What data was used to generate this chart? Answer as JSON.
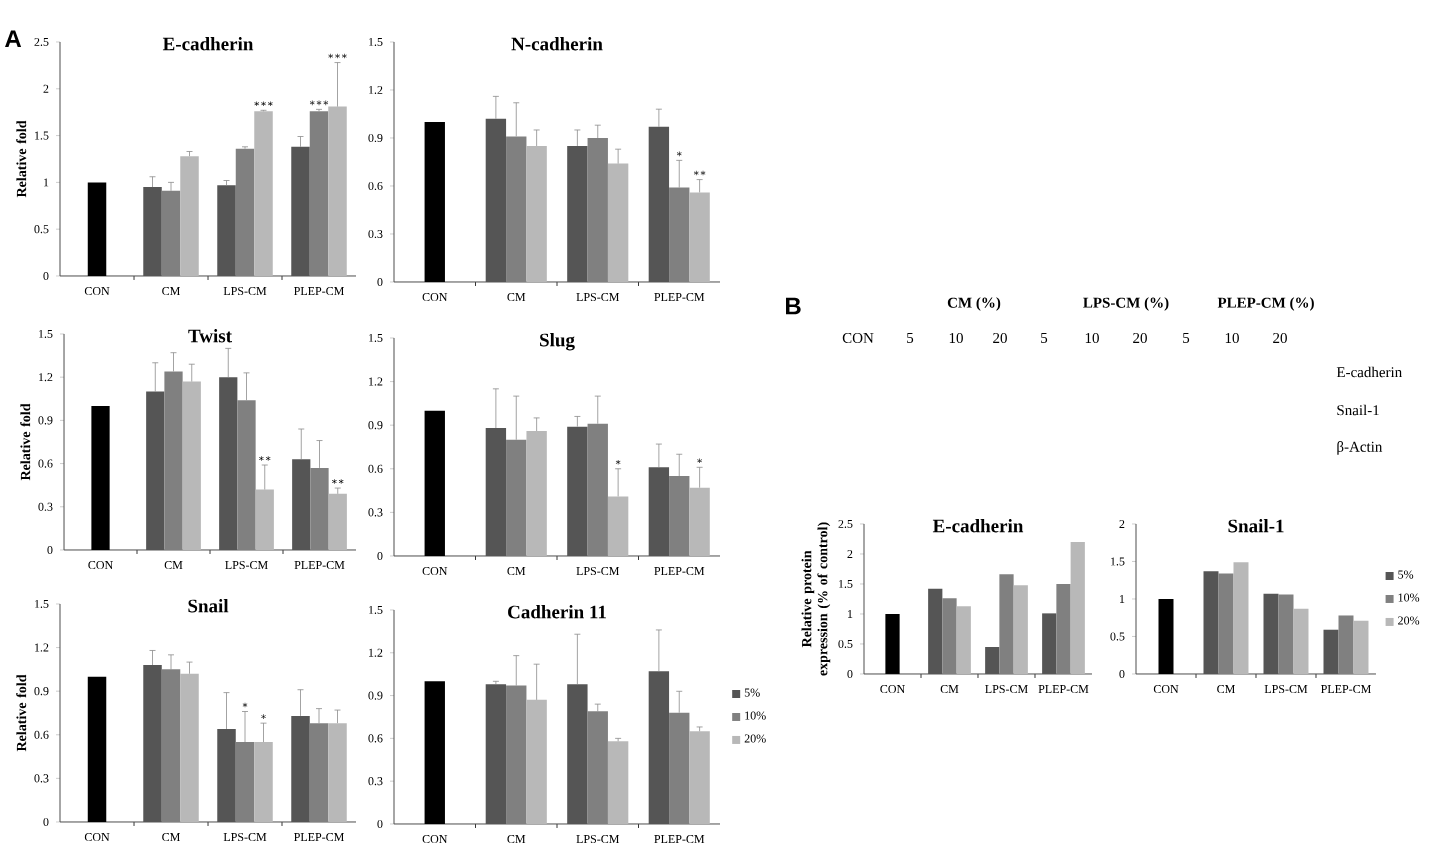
{
  "chart_data": [
    {
      "type": "bar",
      "title": "E-cadherin",
      "ylabel": "Relative fold",
      "categories": [
        "CON",
        "CM",
        "LPS-CM",
        "PLEP-CM"
      ],
      "ylim": [
        0,
        2.5
      ],
      "yticks": [
        0,
        0.5,
        1,
        1.5,
        2,
        2.5
      ],
      "series": [
        {
          "color": "#000000",
          "values": [
            1.0,
            null,
            null,
            null
          ]
        },
        {
          "color": "#555555",
          "values": [
            null,
            0.95,
            0.97,
            1.38
          ],
          "errors": [
            null,
            0.11,
            0.05,
            0.11
          ]
        },
        {
          "color": "#808080",
          "values": [
            null,
            0.91,
            1.36,
            1.76
          ],
          "errors": [
            null,
            0.09,
            0.02,
            0.02
          ]
        },
        {
          "color": "#b8b8b8",
          "values": [
            null,
            1.28,
            1.76,
            1.81
          ],
          "errors": [
            null,
            0.05,
            0.01,
            0.47
          ]
        }
      ],
      "annotations": [
        "A",
        {
          "text": "∗∗∗",
          "x": "LPS-CM",
          "y": 1.77
        },
        {
          "text": "∗∗∗",
          "x": "PLEP-CM",
          "y": 1.78
        },
        "∗∗∗"
      ]
    },
    {
      "type": "bar",
      "title": "N-cadherin",
      "categories": [
        "CON",
        "CM",
        "LPS-CM",
        "PLEP-CM"
      ],
      "ylim": [
        0,
        1.5
      ],
      "yticks": [
        0,
        0.3,
        0.6,
        0.9,
        1.2,
        1.5
      ],
      "series": [
        {
          "color": "#000000",
          "values": [
            1.0,
            null,
            null,
            null
          ]
        },
        {
          "color": "#555555",
          "values": [
            null,
            1.02,
            0.85,
            0.97
          ],
          "errors": [
            null,
            0.14,
            0.1,
            0.11
          ]
        },
        {
          "color": "#808080",
          "values": [
            null,
            0.91,
            0.9,
            0.59
          ],
          "errors": [
            null,
            0.21,
            0.08,
            0.17
          ]
        },
        {
          "color": "#b8b8b8",
          "values": [
            null,
            0.85,
            0.74,
            0.56
          ],
          "errors": [
            null,
            0.1,
            0.09,
            0.08
          ]
        }
      ],
      "annotations": [
        {
          "text": "∗",
          "x": "PLEP-CM",
          "y": 0.76
        },
        {
          "text": "∗∗",
          "x": "PLEP-CM",
          "y": 0.64
        }
      ]
    },
    {
      "type": "bar",
      "title": "Twist",
      "ylabel": "Relative fold",
      "categories": [
        "CON",
        "CM",
        "LPS-CM",
        "PLEP-CM"
      ],
      "ylim": [
        0,
        1.5
      ],
      "yticks": [
        0,
        0.3,
        0.6,
        0.9,
        1.2,
        1.5
      ],
      "series": [
        {
          "color": "#000000",
          "values": [
            1.0,
            null,
            null,
            null
          ]
        },
        {
          "color": "#555555",
          "values": [
            null,
            1.1,
            1.2,
            0.63
          ],
          "errors": [
            null,
            0.2,
            0.2,
            0.21
          ]
        },
        {
          "color": "#808080",
          "values": [
            null,
            1.24,
            1.04,
            0.57
          ],
          "errors": [
            null,
            0.13,
            0.19,
            0.19
          ]
        },
        {
          "color": "#b8b8b8",
          "values": [
            null,
            1.17,
            0.42,
            0.39
          ],
          "errors": [
            null,
            0.12,
            0.17,
            0.04
          ]
        }
      ],
      "annotations": [
        {
          "text": "∗∗",
          "x": "LPS-CM",
          "y": 0.59
        },
        {
          "text": "∗∗",
          "x": "PLEP-CM",
          "y": 0.43
        }
      ]
    },
    {
      "type": "bar",
      "title": "Slug",
      "categories": [
        "CON",
        "CM",
        "LPS-CM",
        "PLEP-CM"
      ],
      "ylim": [
        0,
        1.5
      ],
      "yticks": [
        0,
        0.3,
        0.6,
        0.9,
        1.2,
        1.5
      ],
      "series": [
        {
          "color": "#000000",
          "values": [
            1.0,
            null,
            null,
            null
          ]
        },
        {
          "color": "#555555",
          "values": [
            null,
            0.88,
            0.89,
            0.61
          ],
          "errors": [
            null,
            0.27,
            0.07,
            0.16
          ]
        },
        {
          "color": "#808080",
          "values": [
            null,
            0.8,
            0.91,
            0.55
          ],
          "errors": [
            null,
            0.3,
            0.19,
            0.15
          ]
        },
        {
          "color": "#b8b8b8",
          "values": [
            null,
            0.86,
            0.41,
            0.47
          ],
          "errors": [
            null,
            0.09,
            0.19,
            0.14
          ]
        }
      ],
      "annotations": [
        "∗",
        {
          "text": "∗",
          "x": "PLEP-CM",
          "y": 0.61
        }
      ]
    },
    {
      "type": "bar",
      "title": "Snail",
      "ylabel": "Relative fold",
      "categories": [
        "CON",
        "CM",
        "LPS-CM",
        "PLEP-CM"
      ],
      "ylim": [
        0,
        1.5
      ],
      "yticks": [
        0,
        0.3,
        0.6,
        0.9,
        1.2,
        1.5
      ],
      "series": [
        {
          "color": "#000000",
          "values": [
            1.0,
            null,
            null,
            null
          ]
        },
        {
          "color": "#555555",
          "values": [
            null,
            1.08,
            0.64,
            0.73
          ],
          "errors": [
            null,
            0.1,
            0.25,
            0.18
          ]
        },
        {
          "color": "#808080",
          "values": [
            null,
            1.05,
            0.55,
            0.68
          ],
          "errors": [
            null,
            0.1,
            0.21,
            0.1
          ]
        },
        {
          "color": "#b8b8b8",
          "values": [
            null,
            1.02,
            0.55,
            0.68
          ],
          "errors": [
            null,
            0.08,
            0.13,
            0.09
          ]
        }
      ],
      "annotations": [
        {
          "text": "∗",
          "x": "LPS-CM",
          "y": 0.76
        },
        {
          "text": "∗",
          "x": "LPS-CM",
          "y": 0.68
        }
      ]
    },
    {
      "type": "bar",
      "title": "Cadherin 11",
      "categories": [
        "CON",
        "CM",
        "LPS-CM",
        "PLEP-CM"
      ],
      "ylim": [
        0,
        1.5
      ],
      "yticks": [
        0,
        0.3,
        0.6,
        0.9,
        1.2,
        1.5
      ],
      "legend": "right",
      "series": [
        {
          "color": "#000000",
          "values": [
            1.0,
            null,
            null,
            null
          ]
        },
        {
          "name": "5%",
          "color": "#555555",
          "values": [
            null,
            0.98,
            0.98,
            1.07
          ],
          "errors": [
            null,
            0.02,
            0.35,
            0.29
          ]
        },
        {
          "name": "10%",
          "color": "#808080",
          "values": [
            null,
            0.97,
            0.79,
            0.78
          ],
          "errors": [
            null,
            0.21,
            0.05,
            0.15
          ]
        },
        {
          "name": "20%",
          "color": "#b8b8b8",
          "values": [
            null,
            0.87,
            0.58,
            0.65
          ],
          "errors": [
            null,
            0.25,
            0.02,
            0.03
          ]
        }
      ]
    },
    {
      "type": "other",
      "annotations": [
        "B",
        "CM (%)",
        "LPS-CM (%)",
        "PLEP-CM (%)",
        "CON",
        "5",
        "10",
        "20",
        "5",
        "10",
        "20",
        "5",
        "10",
        "20",
        "E-cadherin",
        "Snail-1",
        "β-Actin"
      ]
    },
    {
      "type": "bar",
      "title": "E-cadherin",
      "ylabel": "Relative protein expression (% of control)",
      "categories": [
        "CON",
        "CM",
        "LPS-CM",
        "PLEP-CM"
      ],
      "ylim": [
        0,
        2.5
      ],
      "yticks": [
        0,
        0.5,
        1,
        1.5,
        2,
        2.5
      ],
      "series": [
        {
          "color": "#000000",
          "values": [
            1.0,
            null,
            null,
            null
          ]
        },
        {
          "color": "#555555",
          "values": [
            null,
            1.42,
            0.45,
            1.01
          ]
        },
        {
          "color": "#808080",
          "values": [
            null,
            1.26,
            1.66,
            1.5
          ]
        },
        {
          "color": "#b8b8b8",
          "values": [
            null,
            1.13,
            1.48,
            2.2
          ]
        }
      ]
    },
    {
      "type": "bar",
      "title": "Snail-1",
      "categories": [
        "CON",
        "CM",
        "LPS-CM",
        "PLEP-CM"
      ],
      "ylim": [
        0,
        2
      ],
      "yticks": [
        0,
        0.5,
        1,
        1.5,
        2
      ],
      "legend": "right",
      "series": [
        {
          "color": "#000000",
          "values": [
            1.0,
            null,
            null,
            null
          ]
        },
        {
          "name": "5%",
          "color": "#555555",
          "values": [
            null,
            1.37,
            1.07,
            0.59
          ]
        },
        {
          "name": "10%",
          "color": "#808080",
          "values": [
            null,
            1.34,
            1.06,
            0.78
          ]
        },
        {
          "name": "20%",
          "color": "#b8b8b8",
          "values": [
            null,
            1.49,
            0.87,
            0.71
          ]
        }
      ]
    }
  ]
}
